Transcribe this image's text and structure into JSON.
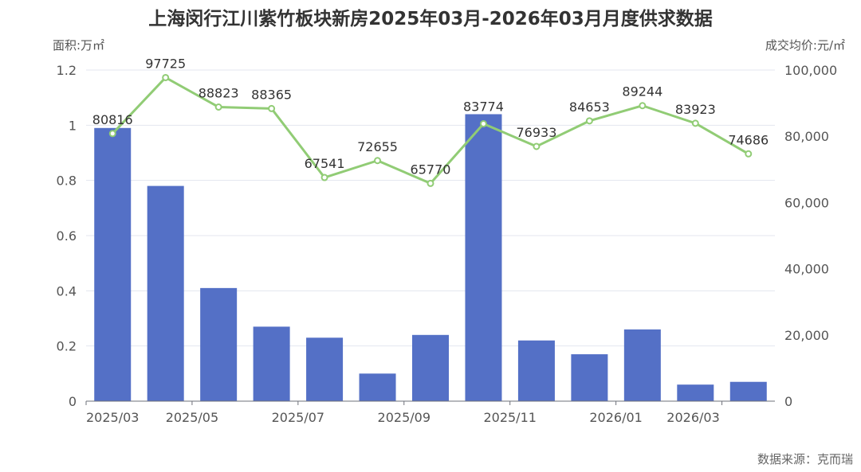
{
  "chart_data": {
    "type": "bar",
    "title": "上海闵行江川紫竹板块新房2025年03月-2026年03月月度供求数据",
    "source": "数据来源：克而瑞",
    "categories": [
      "2025/03",
      "2025/04",
      "2025/05",
      "2025/06",
      "2025/07",
      "2025/08",
      "2025/09",
      "2025/10",
      "2025/11",
      "2025/12",
      "2026/01",
      "2026/02",
      "2026/03"
    ],
    "x_tick_labels": [
      "2025/03",
      "2025/05",
      "2025/07",
      "2025/09",
      "2025/11",
      "2026/01",
      "2026/03"
    ],
    "y_left": {
      "label": "面积:万㎡",
      "range": [
        0,
        1.2
      ],
      "ticks": [
        "0",
        "0.2",
        "0.4",
        "0.6",
        "0.8",
        "1",
        "1.2"
      ]
    },
    "y_right": {
      "label": "成交均价:元/㎡",
      "range": [
        0,
        100000
      ],
      "ticks": [
        "0",
        "20,000",
        "40,000",
        "60,000",
        "80,000",
        "100,000"
      ]
    },
    "series": [
      {
        "type": "bar",
        "axis": "left",
        "color": "#5470c6",
        "values": [
          0.99,
          0.78,
          0.41,
          0.27,
          0.23,
          0.1,
          0.24,
          1.04,
          0.22,
          0.17,
          0.26,
          0.06,
          0.07
        ]
      },
      {
        "type": "line",
        "axis": "right",
        "color": "#91cc75",
        "values": [
          80816,
          97725,
          88823,
          88365,
          67541,
          72655,
          65770,
          83774,
          76933,
          84653,
          89244,
          83923,
          74686
        ]
      }
    ],
    "grid": true
  }
}
